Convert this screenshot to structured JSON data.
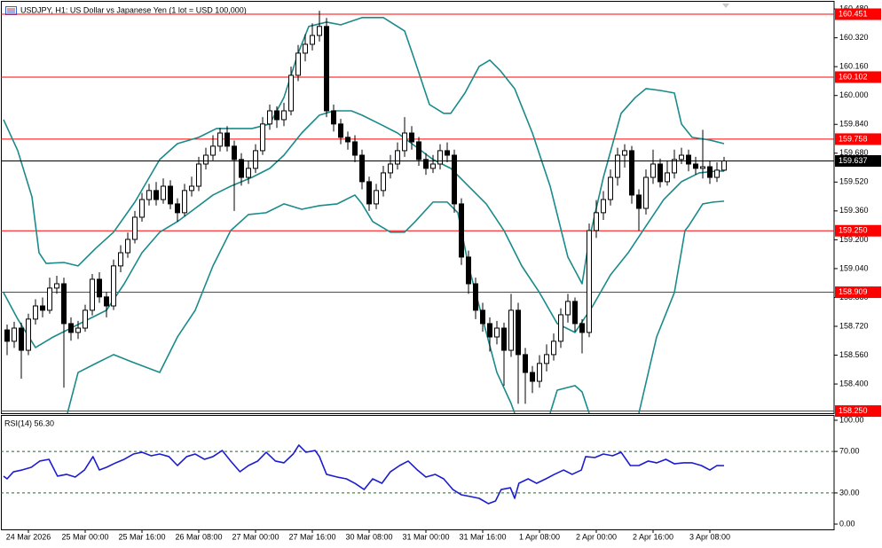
{
  "chart_data": [
    {
      "type": "candlestick",
      "title": "USDJPY, H1:  US Dollar vs Japanese Yen (1 lot = USD 100,000)",
      "xlim": [
        -0.5,
        116.5
      ],
      "ylim": [
        158.238,
        160.51
      ],
      "yticks": [
        {
          "value": 160.48,
          "label": "160.480"
        },
        {
          "value": 160.32,
          "label": "160.320"
        },
        {
          "value": 160.16,
          "label": "160.160"
        },
        {
          "value": 160.0,
          "label": "160.000"
        },
        {
          "value": 159.84,
          "label": "159.840"
        },
        {
          "value": 159.68,
          "label": "159.680"
        },
        {
          "value": 159.52,
          "label": "159.520"
        },
        {
          "value": 159.36,
          "label": "159.360"
        },
        {
          "value": 159.2,
          "label": "159.200"
        },
        {
          "value": 159.04,
          "label": "159.040"
        },
        {
          "value": 158.88,
          "label": "158.880"
        },
        {
          "value": 158.72,
          "label": "158.720"
        },
        {
          "value": 158.56,
          "label": "158.560"
        },
        {
          "value": 158.4,
          "label": "158.400"
        }
      ],
      "candle_color": "#000000",
      "bull_fill": "#ffffff",
      "bear_fill": "#000000",
      "open": [
        158.7,
        158.637,
        158.71,
        158.587,
        158.76,
        158.833,
        158.809,
        158.932,
        158.956,
        158.735,
        158.686,
        158.71,
        158.809,
        158.981,
        158.883,
        158.833,
        159.055,
        159.128,
        159.202,
        159.325,
        159.423,
        159.473,
        159.423,
        159.497,
        159.399,
        159.35,
        159.473,
        159.497,
        159.62,
        159.669,
        159.719,
        159.792,
        159.719,
        159.645,
        159.546,
        159.596,
        159.694,
        159.842,
        159.915,
        159.866,
        159.915,
        160.112,
        160.235,
        160.284,
        160.333,
        160.383,
        159.915,
        159.842,
        159.768,
        159.743,
        159.669,
        159.522,
        159.399,
        159.473,
        159.571,
        159.62,
        159.694,
        159.792,
        159.743,
        159.645,
        159.596,
        159.62,
        159.694,
        159.669,
        159.399,
        159.104,
        158.956,
        158.809,
        158.735,
        158.661,
        158.71,
        158.587,
        158.809,
        158.563,
        158.464,
        158.415,
        158.514,
        158.563,
        158.637,
        158.784,
        158.858,
        158.735,
        158.686,
        159.251,
        159.35,
        159.423,
        159.546,
        159.669,
        159.694,
        159.448,
        159.374,
        159.546,
        159.62,
        159.522,
        159.571,
        159.645,
        159.669,
        159.62,
        159.596,
        159.605,
        159.546,
        159.586
      ],
      "high": [
        158.73,
        158.745,
        158.74,
        158.79,
        158.87,
        158.88,
        158.99,
        159.0,
        158.99,
        158.77,
        158.75,
        158.84,
        159.01,
        159.02,
        158.91,
        159.09,
        159.17,
        159.24,
        159.36,
        159.46,
        159.51,
        159.52,
        159.54,
        159.53,
        159.43,
        159.51,
        159.55,
        159.66,
        159.71,
        159.78,
        159.82,
        159.83,
        159.75,
        159.68,
        159.64,
        159.73,
        159.88,
        159.95,
        159.94,
        159.96,
        160.16,
        160.28,
        160.34,
        160.4,
        160.47,
        160.43,
        159.95,
        159.87,
        159.8,
        159.78,
        159.7,
        159.55,
        159.51,
        159.61,
        159.67,
        159.74,
        159.88,
        159.83,
        159.77,
        159.68,
        159.67,
        159.73,
        159.74,
        159.7,
        159.43,
        159.14,
        158.99,
        158.85,
        158.77,
        158.75,
        158.74,
        158.9,
        158.85,
        158.6,
        158.5,
        158.56,
        158.62,
        158.68,
        158.82,
        158.9,
        158.88,
        158.76,
        159.29,
        159.42,
        159.47,
        159.59,
        159.71,
        159.73,
        159.72,
        159.48,
        159.59,
        159.7,
        159.65,
        159.64,
        159.7,
        159.71,
        159.7,
        159.66,
        159.81,
        159.64,
        159.63,
        159.66
      ],
      "low": [
        158.56,
        158.6,
        158.43,
        158.56,
        158.73,
        158.77,
        158.79,
        158.9,
        158.38,
        158.64,
        158.65,
        158.69,
        158.78,
        158.85,
        158.77,
        158.81,
        159.02,
        159.1,
        159.18,
        159.3,
        159.39,
        159.39,
        159.4,
        159.37,
        159.3,
        159.33,
        159.44,
        159.47,
        159.59,
        159.64,
        159.69,
        159.69,
        159.36,
        159.5,
        159.51,
        159.57,
        159.67,
        159.81,
        159.82,
        159.83,
        159.89,
        160.08,
        160.19,
        160.25,
        160.3,
        159.88,
        159.8,
        159.73,
        159.7,
        159.63,
        159.48,
        159.36,
        159.37,
        159.44,
        159.54,
        159.59,
        159.66,
        159.7,
        159.61,
        159.56,
        159.57,
        159.59,
        159.63,
        159.35,
        159.06,
        158.9,
        158.76,
        158.69,
        158.58,
        158.62,
        158.39,
        158.55,
        158.29,
        158.29,
        158.35,
        158.38,
        158.47,
        158.53,
        158.6,
        158.74,
        158.69,
        158.57,
        158.66,
        159.21,
        159.31,
        159.39,
        159.5,
        159.6,
        159.4,
        159.25,
        159.34,
        159.51,
        159.49,
        159.5,
        159.54,
        159.62,
        159.58,
        159.56,
        159.54,
        159.51,
        159.52,
        159.58
      ],
      "close": [
        158.637,
        158.71,
        158.587,
        158.76,
        158.833,
        158.809,
        158.932,
        158.956,
        158.735,
        158.686,
        158.71,
        158.809,
        158.981,
        158.883,
        158.833,
        159.055,
        159.128,
        159.202,
        159.325,
        159.423,
        159.473,
        159.423,
        159.497,
        159.399,
        159.35,
        159.473,
        159.497,
        159.62,
        159.669,
        159.719,
        159.792,
        159.719,
        159.645,
        159.546,
        159.596,
        159.694,
        159.842,
        159.915,
        159.866,
        159.915,
        160.112,
        160.235,
        160.284,
        160.333,
        160.383,
        159.915,
        159.842,
        159.768,
        159.743,
        159.669,
        159.522,
        159.399,
        159.473,
        159.571,
        159.62,
        159.694,
        159.792,
        159.743,
        159.645,
        159.596,
        159.62,
        159.694,
        159.669,
        159.399,
        159.104,
        158.956,
        158.809,
        158.735,
        158.661,
        158.71,
        158.587,
        158.809,
        158.563,
        158.464,
        158.415,
        158.514,
        158.563,
        158.637,
        158.784,
        158.858,
        158.735,
        158.686,
        159.251,
        159.35,
        159.423,
        159.546,
        159.669,
        159.694,
        159.448,
        159.374,
        159.546,
        159.62,
        159.522,
        159.571,
        159.645,
        159.669,
        159.62,
        159.596,
        159.605,
        159.546,
        159.586,
        159.637
      ],
      "bands": [
        {
          "color": "#1a8a8a",
          "x": [
            -0.5,
            1.5,
            3.5,
            4.5,
            5.5,
            8,
            10,
            12.5,
            15,
            18,
            21.5,
            24,
            27,
            29.5,
            31.5,
            34.5,
            37,
            39,
            41,
            42.5,
            45,
            47,
            50,
            53,
            56,
            57.5,
            59.5,
            61.5,
            62.5,
            64.5,
            66.5,
            68,
            69.5,
            71.5,
            74,
            76.5,
            79,
            81,
            82,
            84,
            86.5,
            88.5,
            90,
            92,
            94,
            95,
            96.5,
            99,
            101
          ],
          "values": [
            159.866,
            159.694,
            159.438,
            159.128,
            159.069,
            159.074,
            159.055,
            159.153,
            159.242,
            159.409,
            159.645,
            159.733,
            159.768,
            159.817,
            159.817,
            159.817,
            159.842,
            159.989,
            160.235,
            160.383,
            160.407,
            160.392,
            160.432,
            160.432,
            160.358,
            160.186,
            159.95,
            159.901,
            159.901,
            160.014,
            160.161,
            160.196,
            160.137,
            160.038,
            159.792,
            159.497,
            159.104,
            158.956,
            159.202,
            159.546,
            159.901,
            159.989,
            160.038,
            160.028,
            160.014,
            159.842,
            159.768,
            159.753,
            159.733
          ]
        },
        {
          "color": "#1a8a8a",
          "x": [
            -0.5,
            1.5,
            4,
            6.5,
            9,
            11.5,
            14,
            16.5,
            19,
            21.5,
            24,
            26.5,
            29,
            31.5,
            34.5,
            37,
            39,
            41.5,
            44,
            46,
            48.5,
            50,
            52.5,
            55,
            57.5,
            60,
            62.5,
            65,
            67.5,
            70,
            72.5,
            75,
            77.5,
            80,
            82.5,
            85,
            87.5,
            90,
            92.5,
            95,
            97.5,
            100,
            101
          ],
          "values": [
            158.907,
            158.76,
            158.602,
            158.661,
            158.71,
            158.76,
            158.809,
            158.956,
            159.128,
            159.242,
            159.301,
            159.374,
            159.448,
            159.497,
            159.546,
            159.596,
            159.669,
            159.792,
            159.891,
            159.915,
            159.915,
            159.891,
            159.842,
            159.792,
            159.719,
            159.645,
            159.596,
            159.497,
            159.399,
            159.251,
            159.055,
            158.907,
            158.735,
            158.686,
            158.833,
            159.005,
            159.128,
            159.276,
            159.423,
            159.522,
            159.571,
            159.581,
            159.581
          ]
        },
        {
          "color": "#1a8a8a",
          "x": [
            8.5,
            10,
            12.5,
            15,
            17.5,
            21.5,
            24,
            26.5,
            29,
            31.5,
            34,
            36.5,
            39,
            41.5,
            44,
            46.5,
            49,
            50,
            51.5,
            54,
            56,
            57.5,
            60,
            62,
            63.5,
            65,
            67,
            69,
            71,
            71.5,
            null,
            76.5,
            77.5,
            80,
            81,
            82,
            null,
            89,
            91.5,
            94,
            95.5,
            96,
            98,
            99.5,
            101
          ],
          "values": [
            158.238,
            158.464,
            158.514,
            158.563,
            158.524,
            158.464,
            158.661,
            158.809,
            159.055,
            159.251,
            159.34,
            159.35,
            159.399,
            159.369,
            159.389,
            159.399,
            159.448,
            159.399,
            159.301,
            159.242,
            159.242,
            159.301,
            159.409,
            159.409,
            159.35,
            159.055,
            158.76,
            158.464,
            158.292,
            158.238,
            null,
            158.238,
            158.366,
            158.391,
            158.356,
            158.238,
            null,
            158.238,
            158.661,
            158.907,
            159.251,
            159.276,
            159.399,
            159.409,
            159.414
          ]
        }
      ],
      "levels": {
        "color": "#ff0000",
        "values": [
          160.451,
          160.102,
          159.758,
          159.25,
          158.909,
          158.25
        ],
        "value_labels": [
          "160.451",
          "160.102",
          "159.758",
          "159.250",
          "158.909",
          "158.250"
        ]
      },
      "last_price": {
        "value": 159.637,
        "label": "159.637",
        "color": "#000000"
      }
    },
    {
      "type": "line",
      "title": "RSI(14) 56.30",
      "xlim": [
        -0.5,
        116.5
      ],
      "ylim": [
        -5.1,
        105.1
      ],
      "yticks": [
        {
          "value": 100,
          "label": "100.00"
        },
        {
          "value": 70,
          "label": "70.00"
        },
        {
          "value": 30,
          "label": "30.00"
        },
        {
          "value": 0,
          "label": "0.00"
        }
      ],
      "levels": [
        70,
        30
      ],
      "level_color": "#008000",
      "xticks": [
        {
          "value": 3,
          "label": "24 Mar 2026"
        },
        {
          "value": 11,
          "label": "25 Mar 00:00"
        },
        {
          "value": 19,
          "label": "25 Mar 16:00"
        },
        {
          "value": 27,
          "label": "26 Mar 08:00"
        },
        {
          "value": 35,
          "label": "27 Mar 00:00"
        },
        {
          "value": 43,
          "label": "27 Mar 16:00"
        },
        {
          "value": 51,
          "label": "30 Mar 08:00"
        },
        {
          "value": 59,
          "label": "31 Mar 00:00"
        },
        {
          "value": 67,
          "label": "31 Mar 16:00"
        },
        {
          "value": 75,
          "label": "1 Apr 08:00"
        },
        {
          "value": 83,
          "label": "2 Apr 00:00"
        },
        {
          "value": 91,
          "label": "2 Apr 16:00"
        },
        {
          "value": 99,
          "label": "3 Apr 08:00"
        }
      ],
      "series": [
        {
          "color": "#1c1cd0",
          "x": [
            -0.5,
            0,
            0.9,
            2.1,
            3.4,
            4.6,
            5.9,
            7.1,
            8.4,
            9.6,
            10.9,
            12.1,
            13,
            14,
            15.3,
            16.5,
            17.8,
            19,
            20.3,
            21.5,
            22.8,
            24,
            25.3,
            26.5,
            27.8,
            29,
            30.3,
            31.5,
            32.8,
            34,
            35.3,
            36.5,
            37.8,
            39,
            40.3,
            41.1,
            42.1,
            43.4,
            44,
            45,
            46.5,
            47.8,
            49,
            50.3,
            51.5,
            52.8,
            54,
            55.3,
            56.5,
            57.8,
            59,
            60.3,
            61.5,
            62.8,
            64,
            65.3,
            66.5,
            67.8,
            68.8,
            69.6,
            70.9,
            71.5,
            72.1,
            73.4,
            74.6,
            75.9,
            77.1,
            78.4,
            79.6,
            80.9,
            81.5,
            82.8,
            84,
            85.3,
            86.5,
            87.8,
            89,
            90.3,
            91.5,
            92.8,
            94,
            95.3,
            96.5,
            97.8,
            99,
            100,
            101
          ],
          "values": [
            46.2,
            43.6,
            50.4,
            52.1,
            54.7,
            60.7,
            62.4,
            46.2,
            47.9,
            45.3,
            52.1,
            65.0,
            52.1,
            54.7,
            59.0,
            62.4,
            67.5,
            69.2,
            65.8,
            67.5,
            65.0,
            56.4,
            65.0,
            67.5,
            62.4,
            65.0,
            70.9,
            60.7,
            50.4,
            56.4,
            60.7,
            69.2,
            60.7,
            59.0,
            67.5,
            76.1,
            69.2,
            70.9,
            65.0,
            47.9,
            45.3,
            43.6,
            39.3,
            33.3,
            43.6,
            39.3,
            50.4,
            56.4,
            60.7,
            52.1,
            45.3,
            47.9,
            43.6,
            33.3,
            28.2,
            26.5,
            24.8,
            19.7,
            22.2,
            33.3,
            35.0,
            24.8,
            39.3,
            43.6,
            39.3,
            43.6,
            47.9,
            52.1,
            47.9,
            52.1,
            65.0,
            64.1,
            67.5,
            65.8,
            69.2,
            56.4,
            56.4,
            60.7,
            59.0,
            62.4,
            58.1,
            59.0,
            59.0,
            56.4,
            52.1,
            56.4,
            56.3
          ]
        }
      ]
    }
  ]
}
